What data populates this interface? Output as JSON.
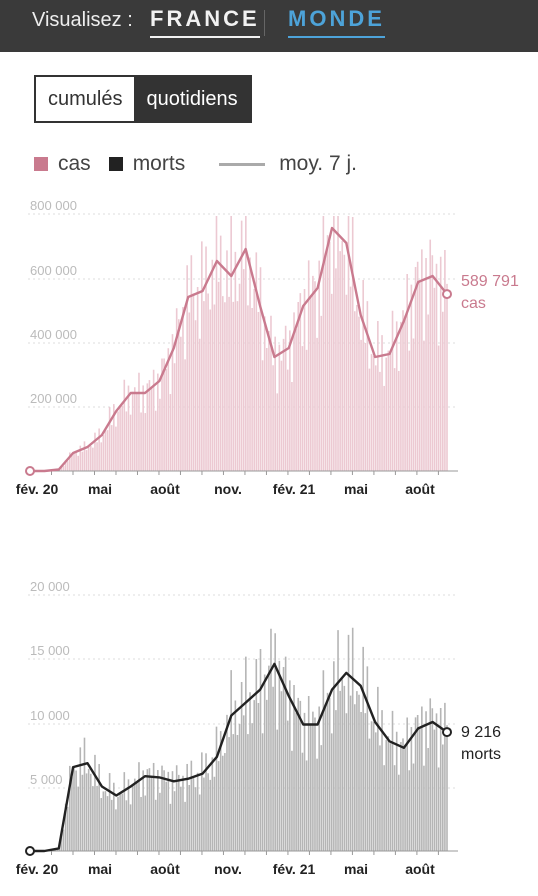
{
  "header": {
    "label": "Visualisez :",
    "options": [
      "FRANCE",
      "MONDE"
    ],
    "active": "MONDE"
  },
  "toggle": [
    "cumulés",
    "quotidiens"
  ],
  "legend": {
    "cas": "cas",
    "morts": "morts",
    "moy": "moy. 7 j.",
    "colors": {
      "cas": "#c97a8e",
      "morts": "#222222",
      "moy": "#aaaaaa"
    }
  },
  "chart_data": [
    {
      "type": "bar",
      "series_name": "cas",
      "x_labels": [
        "fév. 20",
        "mai",
        "août",
        "nov.",
        "fév. 21",
        "mai",
        "août"
      ],
      "y_ticks": [
        "800 000",
        "600 000",
        "400 000",
        "200 000"
      ],
      "ylim": [
        0,
        850000
      ],
      "avg_points": [
        [
          0,
          0
        ],
        [
          1,
          0
        ],
        [
          2,
          5000
        ],
        [
          3,
          60000
        ],
        [
          4,
          80000
        ],
        [
          5,
          120000
        ],
        [
          6,
          200000
        ],
        [
          7,
          260000
        ],
        [
          8,
          260000
        ],
        [
          9,
          300000
        ],
        [
          10,
          410000
        ],
        [
          11,
          580000
        ],
        [
          12,
          600000
        ],
        [
          13,
          700000
        ],
        [
          14,
          650000
        ],
        [
          15,
          740000
        ],
        [
          16,
          550000
        ],
        [
          17,
          380000
        ],
        [
          18,
          410000
        ],
        [
          19,
          550000
        ],
        [
          20,
          610000
        ],
        [
          21,
          810000
        ],
        [
          22,
          760000
        ],
        [
          23,
          520000
        ],
        [
          24,
          380000
        ],
        [
          25,
          390000
        ],
        [
          26,
          500000
        ],
        [
          27,
          630000
        ],
        [
          28,
          650000
        ],
        [
          29,
          589791
        ]
      ],
      "end_value": "589 791",
      "end_unit": "cas",
      "color": "#c97a8e",
      "bar_color": "#ecc9d2"
    },
    {
      "type": "bar",
      "series_name": "morts",
      "x_labels": [
        "fév. 20",
        "mai",
        "août",
        "nov.",
        "fév. 21",
        "mai",
        "août"
      ],
      "y_ticks": [
        "20 000",
        "15 000",
        "10 000",
        "5 000"
      ],
      "ylim": [
        0,
        21000
      ],
      "avg_points": [
        [
          0,
          0
        ],
        [
          1,
          0
        ],
        [
          2,
          200
        ],
        [
          3,
          6500
        ],
        [
          4,
          6800
        ],
        [
          5,
          5000
        ],
        [
          6,
          4300
        ],
        [
          7,
          5000
        ],
        [
          8,
          5800
        ],
        [
          9,
          5700
        ],
        [
          10,
          5400
        ],
        [
          11,
          5600
        ],
        [
          12,
          6000
        ],
        [
          13,
          7300
        ],
        [
          14,
          10500
        ],
        [
          15,
          11500
        ],
        [
          16,
          12500
        ],
        [
          17,
          14500
        ],
        [
          18,
          12000
        ],
        [
          19,
          9800
        ],
        [
          20,
          9800
        ],
        [
          21,
          12500
        ],
        [
          22,
          13800
        ],
        [
          23,
          12800
        ],
        [
          24,
          10000
        ],
        [
          25,
          8500
        ],
        [
          26,
          8000
        ],
        [
          27,
          9500
        ],
        [
          28,
          10000
        ],
        [
          29,
          9216
        ]
      ],
      "end_value": "9 216",
      "end_unit": "morts",
      "color": "#222222",
      "bar_color": "#b5b5b5"
    }
  ]
}
